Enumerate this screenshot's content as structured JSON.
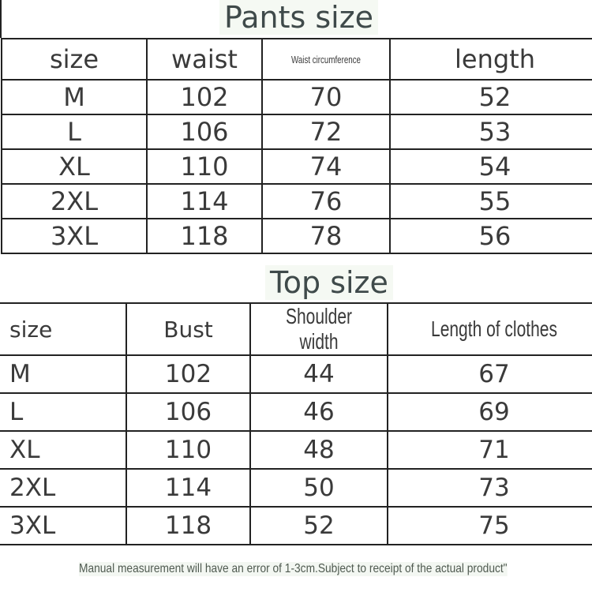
{
  "pants": {
    "title": "Pants size",
    "headers": [
      "size",
      "waist",
      "Waist circumference",
      "length"
    ],
    "rows": [
      [
        "M",
        "102",
        "70",
        "52"
      ],
      [
        "L",
        "106",
        "72",
        "53"
      ],
      [
        "XL",
        "110",
        "74",
        "54"
      ],
      [
        "2XL",
        "114",
        "76",
        "55"
      ],
      [
        "3XL",
        "118",
        "78",
        "56"
      ]
    ]
  },
  "tops": {
    "title": "Top size",
    "headers": [
      "size",
      "Bust",
      "Shoulder width",
      "Length of clothes"
    ],
    "rows": [
      [
        "M",
        "102",
        "44",
        "67"
      ],
      [
        "L",
        "106",
        "46",
        "69"
      ],
      [
        "XL",
        "110",
        "48",
        "71"
      ],
      [
        "2XL",
        "114",
        "50",
        "73"
      ],
      [
        "3XL",
        "118",
        "52",
        "75"
      ]
    ]
  },
  "note": "Manual measurement will have an error of 1-3cm.Subject to receipt of the actual product\""
}
